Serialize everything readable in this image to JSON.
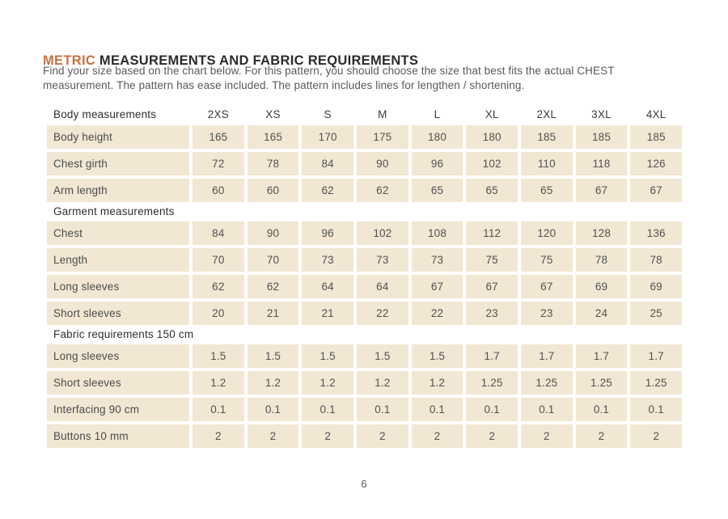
{
  "title": {
    "accent": "METRIC",
    "rest": " MEASUREMENTS AND FABRIC REQUIREMENTS"
  },
  "intro": {
    "line1": "Find your size based on the chart below. For this pattern, you should choose the size that best fits the actual CHEST",
    "line2": "measurement. The pattern has ease included. The pattern includes lines for lengthen / shortening."
  },
  "colors": {
    "accent": "#c9713f",
    "row_bg": "#f1e7d3"
  },
  "table": {
    "corner_label": "Body measurements",
    "sizes": [
      "2XS",
      "XS",
      "S",
      "M",
      "L",
      "XL",
      "2XL",
      "3XL",
      "4XL"
    ],
    "sections": [
      {
        "heading": "",
        "rows": [
          {
            "label": "Body height",
            "values": [
              "165",
              "165",
              "170",
              "175",
              "180",
              "180",
              "185",
              "185",
              "185"
            ]
          },
          {
            "label": "Chest girth",
            "values": [
              "72",
              "78",
              "84",
              "90",
              "96",
              "102",
              "110",
              "118",
              "126"
            ]
          },
          {
            "label": "Arm length",
            "values": [
              "60",
              "60",
              "62",
              "62",
              "65",
              "65",
              "65",
              "67",
              "67"
            ]
          }
        ]
      },
      {
        "heading": "Garment measurements",
        "rows": [
          {
            "label": "Chest",
            "values": [
              "84",
              "90",
              "96",
              "102",
              "108",
              "112",
              "120",
              "128",
              "136"
            ]
          },
          {
            "label": "Length",
            "values": [
              "70",
              "70",
              "73",
              "73",
              "73",
              "75",
              "75",
              "78",
              "78"
            ]
          },
          {
            "label": "Long sleeves",
            "values": [
              "62",
              "62",
              "64",
              "64",
              "67",
              "67",
              "67",
              "69",
              "69"
            ]
          },
          {
            "label": "Short sleeves",
            "values": [
              "20",
              "21",
              "21",
              "22",
              "22",
              "23",
              "23",
              "24",
              "25"
            ]
          }
        ]
      },
      {
        "heading": "Fabric requirements 150 cm",
        "rows": [
          {
            "label": "Long sleeves",
            "values": [
              "1.5",
              "1.5",
              "1.5",
              "1.5",
              "1.5",
              "1.7",
              "1.7",
              "1.7",
              "1.7"
            ]
          },
          {
            "label": "Short sleeves",
            "values": [
              "1.2",
              "1.2",
              "1.2",
              "1.2",
              "1.2",
              "1.25",
              "1.25",
              "1.25",
              "1.25"
            ]
          },
          {
            "label": "Interfacing 90 cm",
            "values": [
              "0.1",
              "0.1",
              "0.1",
              "0.1",
              "0.1",
              "0.1",
              "0.1",
              "0.1",
              "0.1"
            ]
          },
          {
            "label": "Buttons 10 mm",
            "values": [
              "2",
              "2",
              "2",
              "2",
              "2",
              "2",
              "2",
              "2",
              "2"
            ]
          }
        ]
      }
    ]
  },
  "footer": {
    "page_number": "6"
  }
}
